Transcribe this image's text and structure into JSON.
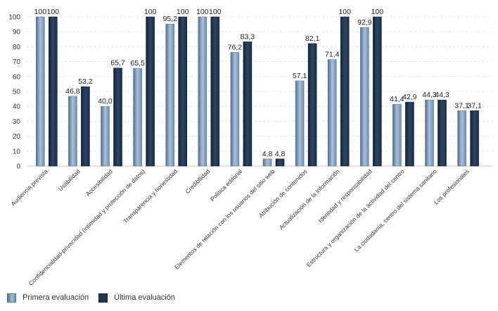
{
  "chart_data": {
    "type": "bar",
    "categories": [
      "Audiencia prevista",
      "Usabilidad",
      "Accesibilidad",
      "Confidencialidad-privacidad (intimidad y protección de datos)",
      "Transparencia y honestidad",
      "Credibilidad",
      "Política editorial",
      "Elementos de relación con los usuarios del sitio web",
      "Atribución de contenidos",
      "Actualización de la información",
      "Identidad y responsabilidad",
      "Estructura y organización de la actividad del centro",
      "La ciudadanía, centro del sistema sanitario",
      "Los profesionales"
    ],
    "series": [
      {
        "name": "Primera evaluación",
        "values": [
          100,
          46.8,
          40.0,
          65.5,
          95.2,
          100,
          76.2,
          4.8,
          57.1,
          71.4,
          92.9,
          41.4,
          44.3,
          37.1
        ],
        "labels": [
          "100",
          "46,8",
          "40,0",
          "65,5",
          "95,2",
          "100",
          "76,2",
          "4,8",
          "57,1",
          "71,4",
          "92,9",
          "41,4",
          "44,3",
          "37,1"
        ]
      },
      {
        "name": "Última evaluación",
        "values": [
          100,
          53.2,
          65.7,
          100,
          100,
          100,
          83.3,
          4.8,
          82.1,
          100,
          100,
          42.9,
          44.3,
          37.1
        ],
        "labels": [
          "100",
          "53,2",
          "65,7",
          "100",
          "100",
          "100",
          "83,3",
          "4,8",
          "82,1",
          "100",
          "100",
          "42,9",
          "44,3",
          "37,1"
        ]
      }
    ],
    "ylim": [
      0,
      100
    ],
    "yticks": [
      0,
      10,
      20,
      30,
      40,
      50,
      60,
      70,
      80,
      90,
      100
    ],
    "grid": true,
    "legend_position": "bottom-left"
  },
  "legend": {
    "items": [
      {
        "label": "Primera evaluación"
      },
      {
        "label": "Última evaluación"
      }
    ]
  }
}
